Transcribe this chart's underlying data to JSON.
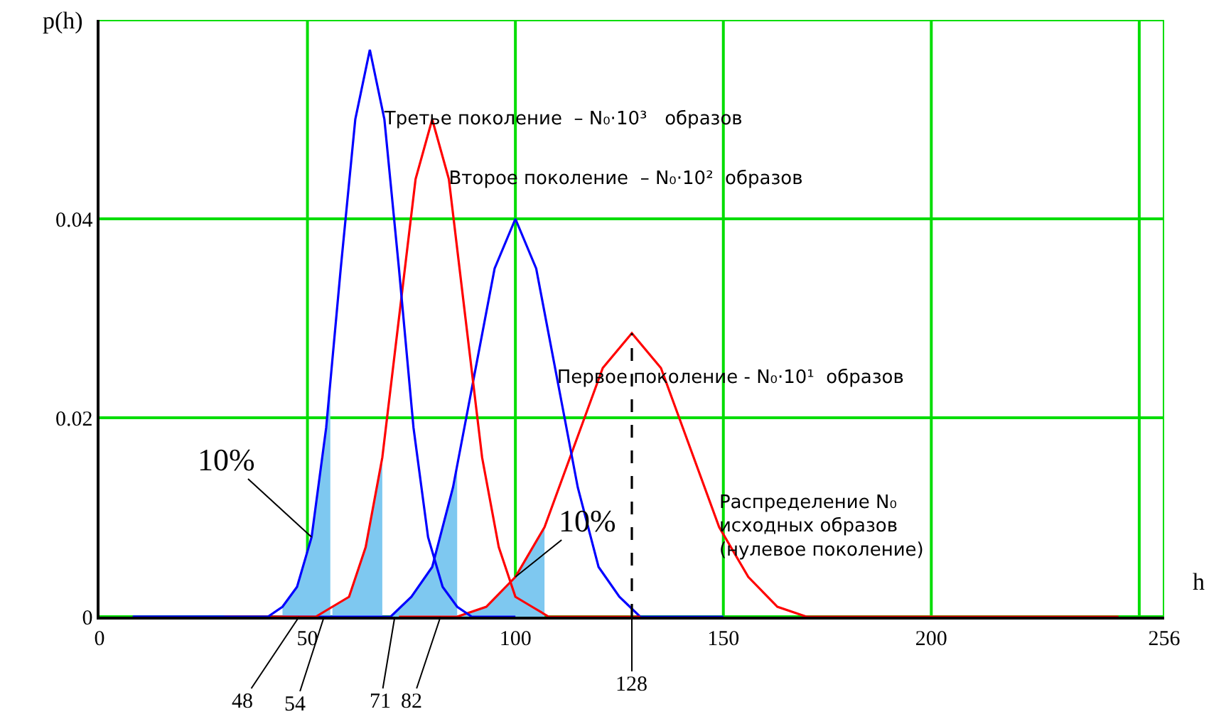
{
  "chart_data": {
    "type": "line",
    "xlabel": "h",
    "ylabel": "p(h)",
    "xlim": [
      0,
      256
    ],
    "ylim": [
      0,
      0.06
    ],
    "xticks": [
      0,
      50,
      100,
      150,
      200,
      {
        "value": 250,
        "label": null
      },
      256
    ],
    "yticks": [
      0,
      0.02,
      0.04,
      {
        "value": 0.06,
        "label": null
      }
    ],
    "grid": true,
    "legend": false,
    "marker": "none",
    "line_style": "solid",
    "series": [
      {
        "type": "area",
        "color": "#7ec8f0",
        "x": [
          44,
          47.5,
          51,
          54.5,
          55.5
        ],
        "values": [
          0.001,
          0.003,
          0.008,
          0.019,
          0.023
        ]
      },
      {
        "type": "area",
        "color": "#7ec8f0",
        "x": [
          56,
          60,
          64,
          68
        ],
        "values": [
          0.001,
          0.002,
          0.007,
          0.016
        ]
      },
      {
        "type": "area",
        "color": "#7ec8f0",
        "x": [
          70,
          75,
          80,
          85,
          86
        ],
        "values": [
          0,
          0.002,
          0.005,
          0.013,
          0.015
        ]
      },
      {
        "type": "area",
        "color": "#7ec8f0",
        "x": [
          86,
          93,
          100,
          107
        ],
        "values": [
          0,
          0.001,
          0.004,
          0.009
        ]
      },
      {
        "name": "Распределение N₀\nисходных образов\n(нулевое поколение)",
        "color": "#ff0000",
        "x": [
          72,
          79,
          86,
          93,
          100,
          107,
          114,
          121,
          128,
          135,
          142,
          149,
          156,
          163,
          170,
          177,
          184,
          245
        ],
        "values": [
          0,
          0,
          0,
          0.001,
          0.004,
          0.009,
          0.017,
          0.025,
          0.0285,
          0.025,
          0.017,
          0.009,
          0.004,
          0.001,
          0,
          0,
          0,
          0
        ]
      },
      {
        "name": "Первое поколение - N₀·10¹  образов",
        "color": "#0000ff",
        "x": [
          8,
          60,
          65,
          70,
          75,
          80,
          85,
          90,
          95,
          100,
          105,
          110,
          115,
          120,
          125,
          130,
          135,
          140,
          150
        ],
        "values": [
          0,
          0,
          0,
          0,
          0.002,
          0.005,
          0.013,
          0.024,
          0.035,
          0.04,
          0.035,
          0.024,
          0.013,
          0.005,
          0.002,
          0,
          0,
          0,
          0
        ]
      },
      {
        "name": "Второе поколение  – N₀·10²  образов",
        "color": "#ff0000",
        "x": [
          30,
          48,
          52,
          56,
          60,
          64,
          68,
          72,
          76,
          80,
          84,
          88,
          92,
          96,
          100,
          104,
          108,
          112,
          130
        ],
        "values": [
          0,
          0,
          0,
          0.001,
          0.002,
          0.007,
          0.016,
          0.03,
          0.044,
          0.05,
          0.044,
          0.03,
          0.016,
          0.007,
          0.002,
          0.001,
          0,
          0,
          0
        ]
      },
      {
        "name": "Третье поколение  – N₀·10³   образов",
        "color": "#0000ff",
        "x": [
          8,
          37,
          40.5,
          44,
          47.5,
          51,
          54.5,
          58,
          61.5,
          65,
          68.5,
          72,
          75.5,
          79,
          82.5,
          86,
          89.5,
          93,
          100
        ],
        "values": [
          0,
          0,
          0,
          0.001,
          0.003,
          0.008,
          0.019,
          0.035,
          0.05,
          0.057,
          0.05,
          0.035,
          0.019,
          0.008,
          0.003,
          0.001,
          0,
          0,
          0
        ]
      },
      {
        "type": "line",
        "line_style": "dashed",
        "color": "#000000",
        "x": [
          128,
          128
        ],
        "values": [
          0,
          0.0285
        ]
      }
    ],
    "annotations": [
      {
        "text": "10%",
        "x": 51,
        "y": 0.008
      },
      {
        "text": "10%",
        "x": 100,
        "y": 0.004
      },
      {
        "text": "48",
        "x": 48,
        "y": 0
      },
      {
        "text": "54",
        "x": 54,
        "y": 0
      },
      {
        "text": "71",
        "x": 71,
        "y": 0
      },
      {
        "text": "82",
        "x": 82,
        "y": 0
      },
      {
        "text": "128",
        "x": 128,
        "y": 0
      }
    ]
  }
}
